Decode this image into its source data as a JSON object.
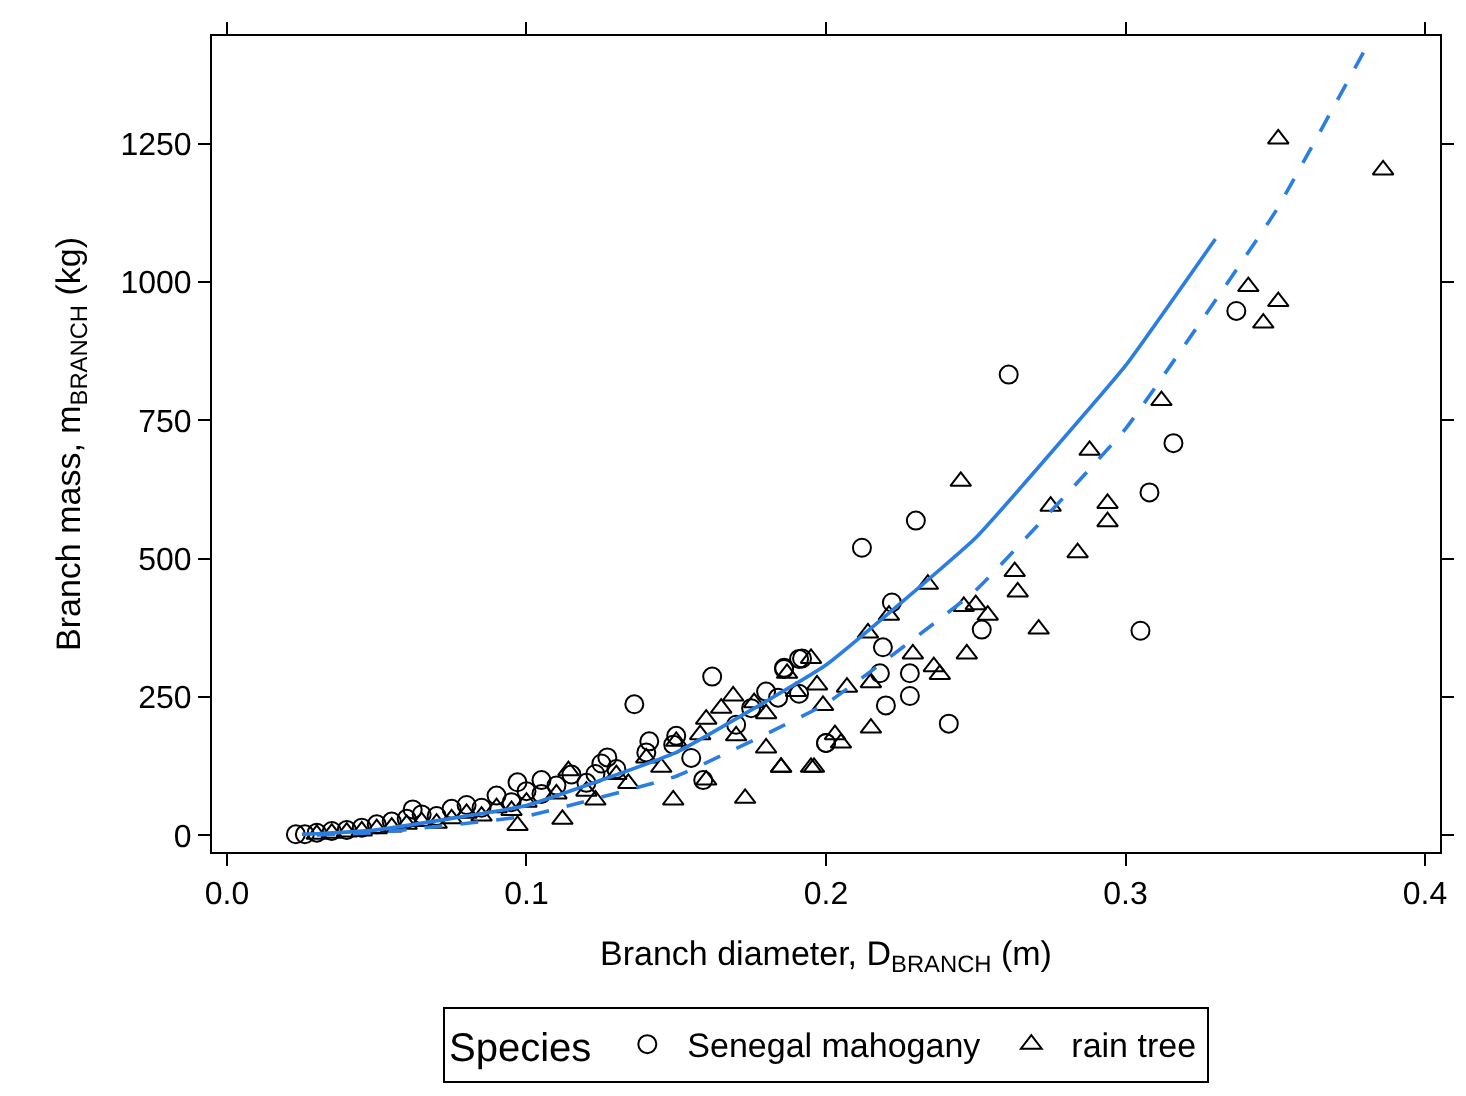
{
  "chart_data": {
    "type": "scatter",
    "xlabel": "Branch diameter, D$_{BRANCH}$ (m)",
    "ylabel": "Branch mass, m$_{BRANCH}$ (kg)",
    "legend_title": "Species",
    "legend": "bottom",
    "xlim": [
      -0.005,
      0.405
    ],
    "xticks": [
      {
        "value": 0,
        "label": "0.0"
      },
      0.1,
      0.2,
      0.3,
      0.4
    ],
    "ylim": [
      -30,
      1445
    ],
    "yticks": [
      0,
      250,
      500,
      750,
      1000,
      1250
    ],
    "series": [
      {
        "name": "Senegal mahogany",
        "marker": "circle",
        "color": "#000000",
        "x": [
          0.261,
          0.337,
          0.316,
          0.308,
          0.305,
          0.23,
          0.212,
          0.222,
          0.219,
          0.218,
          0.228,
          0.228,
          0.22,
          0.241,
          0.252,
          0.2,
          0.186,
          0.192,
          0.184,
          0.191,
          0.162,
          0.136,
          0.141,
          0.127,
          0.097,
          0.062,
          0.023,
          0.026,
          0.186,
          0.191,
          0.2,
          0.159,
          0.149,
          0.123,
          0.105,
          0.03,
          0.035,
          0.04,
          0.045,
          0.05,
          0.055,
          0.06,
          0.065,
          0.07,
          0.075,
          0.08,
          0.085,
          0.09,
          0.095,
          0.1,
          0.105,
          0.11,
          0.115,
          0.12,
          0.125,
          0.13,
          0.14,
          0.15,
          0.155,
          0.17,
          0.175,
          0.18
        ],
        "values": [
          833,
          948,
          709,
          620,
          370,
          569,
          520,
          421,
          340,
          293,
          293,
          252,
          235,
          202,
          372,
          167,
          301,
          320,
          249,
          256,
          287,
          237,
          170,
          141,
          96,
          47,
          2,
          2,
          303,
          319,
          167,
          100,
          164,
          111,
          100,
          5,
          8,
          10,
          14,
          20,
          25,
          30,
          38,
          35,
          48,
          55,
          50,
          72,
          60,
          80,
          75,
          90,
          110,
          95,
          130,
          120,
          150,
          180,
          140,
          200,
          230,
          260
        ]
      },
      {
        "name": "rain tree",
        "marker": "triangle",
        "color": "#000000",
        "x": [
          0.351,
          0.386,
          0.341,
          0.351,
          0.346,
          0.312,
          0.288,
          0.245,
          0.294,
          0.294,
          0.275,
          0.284,
          0.263,
          0.264,
          0.271,
          0.234,
          0.246,
          0.25,
          0.254,
          0.247,
          0.229,
          0.236,
          0.238,
          0.221,
          0.214,
          0.215,
          0.203,
          0.205,
          0.195,
          0.185,
          0.18,
          0.199,
          0.207,
          0.215,
          0.197,
          0.195,
          0.187,
          0.173,
          0.196,
          0.185,
          0.169,
          0.176,
          0.149,
          0.16,
          0.134,
          0.114,
          0.112,
          0.097,
          0.158,
          0.145,
          0.123,
          0.03,
          0.035,
          0.04,
          0.045,
          0.05,
          0.055,
          0.06,
          0.065,
          0.07,
          0.075,
          0.08,
          0.085,
          0.09,
          0.095,
          0.1,
          0.11,
          0.12,
          0.13,
          0.14,
          0.15,
          0.16,
          0.165,
          0.17,
          0.18,
          0.19
        ],
        "values": [
          1259,
          1203,
          992,
          965,
          926,
          786,
          696,
          640,
          600,
          567,
          595,
          511,
          477,
          440,
          373,
          454,
          414,
          417,
          398,
          328,
          328,
          305,
          291,
          398,
          366,
          194,
          182,
          167,
          123,
          123,
          158,
          235,
          268,
          276,
          272,
          320,
          293,
          67,
          123,
          123,
          252,
          240,
          64,
          100,
          94,
          117,
          29,
          18,
          182,
          123,
          64,
          2,
          4,
          6,
          8,
          12,
          15,
          20,
          25,
          22,
          30,
          40,
          35,
          50,
          45,
          60,
          75,
          80,
          110,
          140,
          170,
          210,
          230,
          180,
          220,
          260
        ]
      },
      {
        "type": "line",
        "marker": "none",
        "line_style": "solid",
        "color": "#2a7de1",
        "x": [
          0.025,
          0.03,
          0.05,
          0.1,
          0.15,
          0.2,
          0.25,
          0.3,
          0.33
        ],
        "values": [
          2,
          3,
          10,
          54,
          150,
          308,
          538,
          849,
          1078
        ]
      },
      {
        "type": "line",
        "marker": "none",
        "line_style": "dashed",
        "color": "#2a7de1",
        "x": [
          0.03,
          0.05,
          0.1,
          0.15,
          0.2,
          0.25,
          0.3,
          0.35,
          0.38
        ],
        "values": [
          1,
          5,
          35,
          107,
          238,
          443,
          735,
          1127,
          1421
        ]
      }
    ]
  }
}
